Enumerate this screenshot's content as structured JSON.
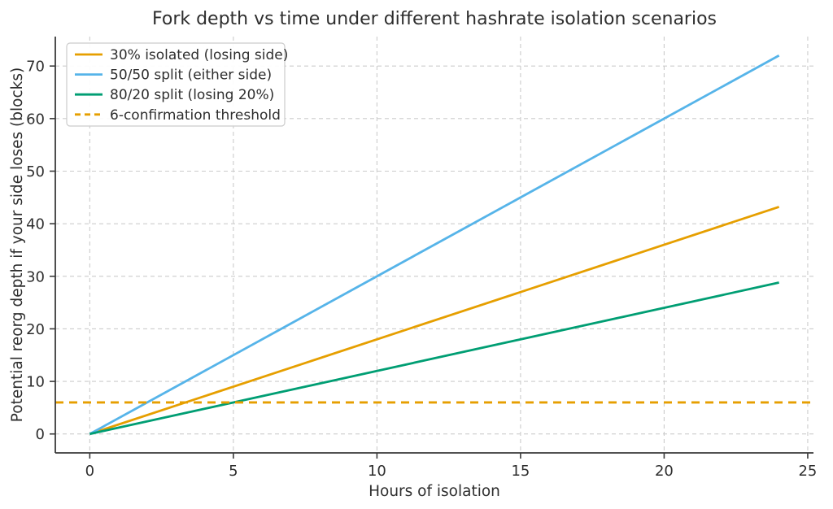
{
  "chart_data": {
    "type": "line",
    "title": "Fork depth vs time under different hashrate isolation scenarios",
    "xlabel": "Hours of isolation",
    "ylabel": "Potential reorg depth if your side loses (blocks)",
    "xlim": [
      -1.2,
      25.2
    ],
    "ylim": [
      -3.6,
      75.6
    ],
    "xticks": [
      0,
      5,
      10,
      15,
      20,
      25
    ],
    "yticks": [
      0,
      10,
      20,
      30,
      40,
      50,
      60,
      70
    ],
    "grid": "dashed-both-axes",
    "legend_position": "upper left",
    "background": "#ffffff",
    "grid_color": "#cccccc",
    "spine_color": "#3a3a3a",
    "series": [
      {
        "name": "30% isolated (losing side)",
        "color": "#E69F00",
        "style": "solid",
        "x": [
          0,
          24
        ],
        "y": [
          0,
          43.2
        ],
        "rate_blocks_per_hour": 1.8
      },
      {
        "name": "50/50 split (either side)",
        "color": "#56B4E9",
        "style": "solid",
        "x": [
          0,
          24
        ],
        "y": [
          0,
          72
        ],
        "rate_blocks_per_hour": 3.0
      },
      {
        "name": "80/20 split (losing 20%)",
        "color": "#009E73",
        "style": "solid",
        "x": [
          0,
          24
        ],
        "y": [
          0,
          28.8
        ],
        "rate_blocks_per_hour": 1.2
      },
      {
        "name": "6-confirmation threshold",
        "color": "#E69F00",
        "style": "dashed",
        "x": [
          -1.2,
          25.2
        ],
        "y": [
          6,
          6
        ],
        "threshold_value": 6
      }
    ]
  }
}
